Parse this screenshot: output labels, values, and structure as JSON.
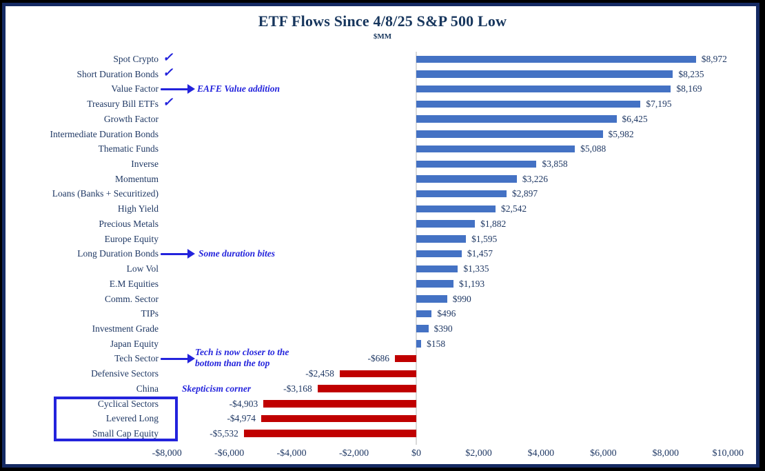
{
  "chart_data": {
    "type": "bar",
    "orientation": "horizontal",
    "title": "ETF Flows Since 4/8/25 S&P 500 Low",
    "subtitle": "$MM",
    "xlim": [
      -8000,
      10000
    ],
    "x_tick_values": [
      -8000,
      -6000,
      -4000,
      -2000,
      0,
      2000,
      4000,
      6000,
      8000,
      10000
    ],
    "x_tick_labels": [
      "-$8,000",
      "-$6,000",
      "-$4,000",
      "-$2,000",
      "$0",
      "$2,000",
      "$4,000",
      "$6,000",
      "$8,000",
      "$10,000"
    ],
    "positive_color": "#4472c4",
    "negative_color": "#c00000",
    "grid": "zero-line-only",
    "categories": [
      "Spot Crypto",
      "Short Duration Bonds",
      "Value Factor",
      "Treasury Bill ETFs",
      "Growth Factor",
      "Intermediate Duration Bonds",
      "Thematic Funds",
      "Inverse",
      "Momentum",
      "Loans (Banks + Securitized)",
      "High Yield",
      "Precious Metals",
      "Europe Equity",
      "Long Duration Bonds",
      "Low Vol",
      "E.M Equities",
      "Comm. Sector",
      "TIPs",
      "Investment Grade",
      "Japan Equity",
      "Tech Sector",
      "Defensive Sectors",
      "China",
      "Cyclical Sectors",
      "Levered Long",
      "Small Cap Equity"
    ],
    "values": [
      8972,
      8235,
      8169,
      7195,
      6425,
      5982,
      5088,
      3858,
      3226,
      2897,
      2542,
      1882,
      1595,
      1457,
      1335,
      1193,
      990,
      496,
      390,
      158,
      -686,
      -2458,
      -3168,
      -4903,
      -4974,
      -5532
    ],
    "value_labels": [
      "$8,972",
      "$8,235",
      "$8,169",
      "$7,195",
      "$6,425",
      "$5,982",
      "$5,088",
      "$3,858",
      "$3,226",
      "$2,897",
      "$2,542",
      "$1,882",
      "$1,595",
      "$1,457",
      "$1,335",
      "$1,193",
      "$990",
      "$496",
      "$390",
      "$158",
      "-$686",
      "-$2,458",
      "-$3,168",
      "-$4,903",
      "-$4,974",
      "-$5,532"
    ],
    "checked_categories": [
      "Spot Crypto",
      "Short Duration Bonds",
      "Treasury Bill ETFs"
    ],
    "arrow_categories": [
      "Value Factor",
      "Long Duration Bonds",
      "Tech Sector"
    ],
    "annotations": [
      {
        "text": "EAFE Value addition",
        "category": "Value Factor"
      },
      {
        "text": "Some duration bites",
        "category": "Long Duration Bonds"
      },
      {
        "text": "Tech is now closer to the bottom than the top",
        "category": "Tech Sector"
      },
      {
        "text": "Skepticism corner",
        "category": "China"
      }
    ],
    "highlight_box_categories": [
      "Cyclical Sectors",
      "Levered Long",
      "Small Cap Equity"
    ],
    "accent_blue": "#2323dc",
    "text_color": "#1f3864"
  },
  "icons": {
    "checkmark": "✓"
  }
}
